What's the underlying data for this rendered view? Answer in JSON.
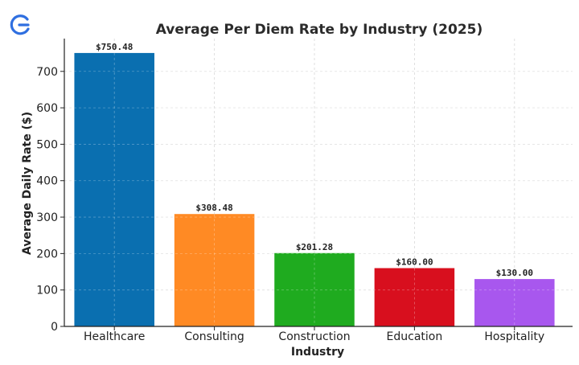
{
  "chart_data": {
    "type": "bar",
    "title": "Average Per Diem Rate by Industry (2025)",
    "xlabel": "Industry",
    "ylabel": "Average Daily Rate ($)",
    "categories": [
      "Healthcare",
      "Consulting",
      "Construction",
      "Education",
      "Hospitality"
    ],
    "values": [
      750.48,
      308.48,
      201.28,
      160.0,
      130.0
    ],
    "data_labels": [
      "$750.48",
      "$308.48",
      "$201.28",
      "$160.00",
      "$130.00"
    ],
    "colors": [
      "#0a6fb0",
      "#ff8a24",
      "#1fab1f",
      "#d80f1e",
      "#a857ee"
    ],
    "ylim": [
      0,
      790
    ],
    "yticks": [
      0,
      100,
      200,
      300,
      400,
      500,
      600,
      700
    ],
    "grid": true,
    "legend": "none"
  },
  "logo": {
    "icon": "logo-g-icon",
    "color": "#2f6fe0"
  }
}
